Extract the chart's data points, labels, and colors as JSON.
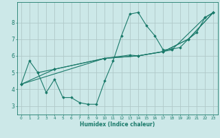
{
  "title": "",
  "xlabel": "Humidex (Indice chaleur)",
  "ylabel": "",
  "bg_color": "#cce8e8",
  "grid_color": "#b0c8c8",
  "line_color": "#1a7a6a",
  "xlim": [
    -0.5,
    23.5
  ],
  "ylim": [
    2.5,
    9.2
  ],
  "xticks": [
    0,
    1,
    2,
    3,
    4,
    5,
    6,
    7,
    8,
    9,
    10,
    11,
    12,
    13,
    14,
    15,
    16,
    17,
    18,
    19,
    20,
    21,
    22,
    23
  ],
  "yticks": [
    3,
    4,
    5,
    6,
    7,
    8
  ],
  "series": [
    {
      "x": [
        0,
        1,
        2,
        3,
        4,
        5,
        6,
        7,
        8,
        9,
        10,
        11,
        12,
        13,
        14,
        15,
        16,
        17,
        18,
        19,
        20,
        21,
        22,
        23
      ],
      "y": [
        4.3,
        5.7,
        5.0,
        3.8,
        4.6,
        3.5,
        3.5,
        3.2,
        3.1,
        3.1,
        4.5,
        5.7,
        7.2,
        8.5,
        8.6,
        7.8,
        7.2,
        6.35,
        6.4,
        6.5,
        7.0,
        7.4,
        8.3,
        8.6
      ]
    },
    {
      "x": [
        0,
        10,
        13,
        14,
        17,
        20,
        23
      ],
      "y": [
        4.3,
        5.85,
        6.05,
        6.0,
        6.25,
        7.0,
        8.6
      ]
    },
    {
      "x": [
        0,
        4,
        10,
        14,
        18,
        22,
        23
      ],
      "y": [
        4.3,
        5.2,
        5.85,
        6.0,
        6.35,
        8.3,
        8.6
      ]
    },
    {
      "x": [
        2,
        4,
        10,
        14,
        17,
        20,
        23
      ],
      "y": [
        5.0,
        5.2,
        5.85,
        6.0,
        6.25,
        7.0,
        8.6
      ]
    }
  ]
}
